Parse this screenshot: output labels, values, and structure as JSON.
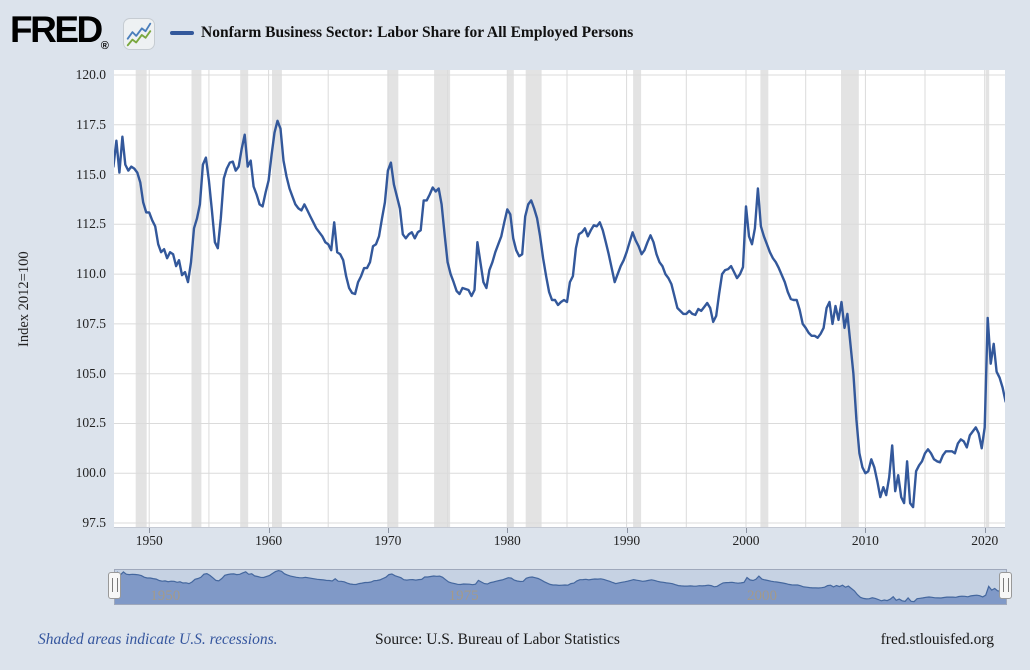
{
  "header": {
    "logo_text": "FRED",
    "logo_reg": "®",
    "chart_icon": "fred-sparkline-icon"
  },
  "footer": {
    "note": "Shaded areas indicate U.S. recessions.",
    "source": "Source: U.S. Bureau of Labor Statistics",
    "site": "fred.stlouisfed.org"
  },
  "slider": {
    "labels": [
      {
        "label": "1950",
        "year": 1950
      },
      {
        "label": "1975",
        "year": 1975
      },
      {
        "label": "2000",
        "year": 2000
      }
    ],
    "handle_glyph": "drag-handle"
  },
  "colors": {
    "page_bg": "#dce3ec",
    "plot_bg": "#ffffff",
    "line": "#33589B",
    "grid": "#dbdbdb",
    "recession_band": "#e3e3e3",
    "axis_line": "#c5cad4",
    "tick_text": "#222222",
    "slider_bg": "#c6d2e3",
    "slider_fill": "#8099c7",
    "slider_line": "#44679e",
    "slider_label": "#a39a8a",
    "note_blue": "#35569e",
    "icon_blue": "#4a7ebb",
    "icon_green": "#7aa83f"
  },
  "chart_data": {
    "type": "line",
    "title": "Nonfarm Business Sector: Labor Share for All Employed Persons",
    "xlabel": "",
    "ylabel": "Index 2012=100",
    "legend_position": "top",
    "grid": true,
    "xlim": [
      1947.05,
      2021.7
    ],
    "ylim": [
      97.25,
      120.25
    ],
    "y_ticks": [
      97.5,
      100.0,
      102.5,
      105.0,
      107.5,
      110.0,
      112.5,
      115.0,
      117.5,
      120.0
    ],
    "x_ticks": [
      1950,
      1960,
      1970,
      1980,
      1990,
      2000,
      2010,
      2020
    ],
    "x_grid_step": 5,
    "x_start": 1947.0,
    "x_step": 0.25,
    "frequency": "Quarterly",
    "recessions": [
      [
        1948.87,
        1949.79
      ],
      [
        1953.54,
        1954.37
      ],
      [
        1957.62,
        1958.29
      ],
      [
        1960.29,
        1961.12
      ],
      [
        1969.96,
        1970.87
      ],
      [
        1973.87,
        1975.21
      ],
      [
        1980.04,
        1980.54
      ],
      [
        1981.54,
        1982.87
      ],
      [
        1990.54,
        1991.21
      ],
      [
        2001.21,
        2001.87
      ],
      [
        2007.96,
        2009.45
      ],
      [
        2020.08,
        2020.37
      ]
    ],
    "values": [
      115.4,
      116.7,
      115.1,
      116.9,
      115.5,
      115.2,
      115.4,
      115.3,
      115.1,
      114.6,
      113.6,
      113.1,
      113.1,
      112.7,
      112.4,
      111.5,
      111.1,
      111.25,
      110.8,
      111.1,
      111.0,
      110.4,
      110.7,
      109.95,
      110.1,
      109.6,
      110.6,
      112.3,
      112.8,
      113.5,
      115.5,
      115.85,
      114.7,
      113.2,
      111.6,
      111.3,
      112.8,
      114.8,
      115.3,
      115.6,
      115.65,
      115.2,
      115.4,
      116.3,
      117.0,
      115.4,
      115.7,
      114.4,
      114.0,
      113.5,
      113.4,
      114.1,
      114.7,
      116.0,
      117.1,
      117.7,
      117.3,
      115.7,
      114.9,
      114.3,
      113.9,
      113.5,
      113.3,
      113.2,
      113.5,
      113.2,
      112.9,
      112.6,
      112.3,
      112.1,
      111.9,
      111.6,
      111.5,
      111.2,
      112.6,
      111.1,
      111.0,
      110.7,
      109.9,
      109.3,
      109.05,
      109.0,
      109.6,
      109.9,
      110.3,
      110.3,
      110.6,
      111.4,
      111.5,
      111.9,
      112.8,
      113.6,
      115.2,
      115.6,
      114.5,
      113.9,
      113.3,
      112.0,
      111.8,
      112.0,
      112.1,
      111.8,
      112.1,
      112.2,
      113.7,
      113.7,
      114.0,
      114.35,
      114.15,
      114.3,
      113.5,
      112.0,
      110.6,
      110.0,
      109.6,
      109.15,
      109.0,
      109.3,
      109.25,
      109.2,
      108.9,
      109.2,
      111.6,
      110.6,
      109.6,
      109.3,
      110.2,
      110.6,
      111.1,
      111.5,
      111.9,
      112.6,
      113.25,
      113.0,
      111.8,
      111.2,
      110.9,
      111.0,
      112.9,
      113.5,
      113.7,
      113.3,
      112.8,
      111.9,
      110.8,
      109.9,
      109.1,
      108.7,
      108.7,
      108.45,
      108.6,
      108.7,
      108.6,
      109.6,
      109.9,
      111.3,
      112.0,
      112.1,
      112.3,
      111.9,
      112.2,
      112.45,
      112.4,
      112.6,
      112.2,
      111.6,
      111.0,
      110.3,
      109.6,
      110.0,
      110.4,
      110.7,
      111.1,
      111.6,
      112.1,
      111.7,
      111.4,
      111.0,
      111.2,
      111.6,
      111.95,
      111.6,
      111.0,
      110.6,
      110.4,
      110.0,
      109.8,
      109.5,
      108.9,
      108.3,
      108.15,
      108.0,
      108.0,
      108.15,
      108.0,
      107.95,
      108.25,
      108.15,
      108.35,
      108.55,
      108.3,
      107.6,
      107.9,
      109.0,
      110.0,
      110.2,
      110.25,
      110.4,
      110.1,
      109.8,
      110.0,
      110.35,
      113.4,
      111.9,
      111.5,
      112.3,
      114.3,
      112.4,
      111.9,
      111.5,
      111.1,
      110.8,
      110.6,
      110.3,
      109.95,
      109.6,
      109.1,
      108.75,
      108.7,
      108.7,
      108.2,
      107.5,
      107.3,
      107.05,
      106.9,
      106.9,
      106.8,
      107.0,
      107.3,
      108.3,
      108.6,
      107.5,
      108.4,
      107.7,
      108.6,
      107.3,
      108.0,
      106.5,
      105.0,
      102.7,
      101.0,
      100.3,
      100.0,
      100.1,
      100.7,
      100.3,
      99.6,
      98.8,
      99.3,
      98.9,
      99.8,
      101.4,
      99.1,
      99.9,
      98.8,
      98.5,
      100.6,
      98.5,
      98.3,
      100.1,
      100.4,
      100.6,
      101.0,
      101.2,
      101.0,
      100.7,
      100.6,
      100.55,
      100.9,
      101.1,
      101.1,
      101.1,
      101.0,
      101.5,
      101.7,
      101.6,
      101.3,
      101.9,
      102.1,
      102.3,
      102.0,
      101.25,
      102.3,
      107.8,
      105.5,
      106.5,
      105.1,
      104.8,
      104.3,
      103.6
    ]
  }
}
